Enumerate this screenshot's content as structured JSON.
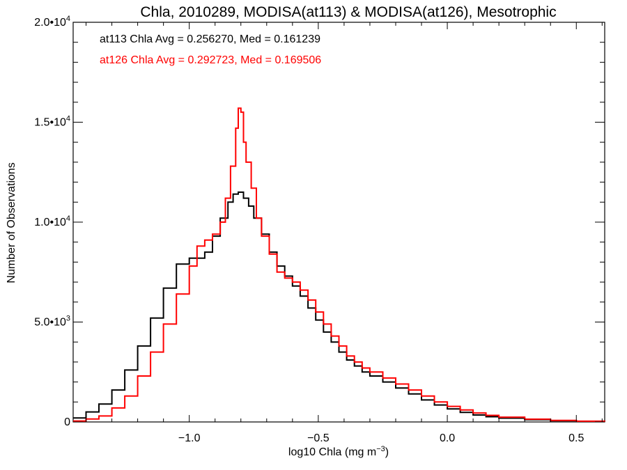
{
  "chart_data": {
    "type": "line",
    "step": true,
    "title": "Chla, 2010289, MODISA(at113) & MODISA(at126), Mesotrophic",
    "xlabel": "log10 Chla (mg m",
    "xlabel_exponent": "−3",
    "xlabel_suffix": ")",
    "ylabel": "Number of Observations",
    "xlim": [
      -1.45,
      0.61
    ],
    "ylim": [
      0,
      20000
    ],
    "grid": false,
    "x_ticks": [
      {
        "value": -1.0,
        "label": "−1.0"
      },
      {
        "value": -0.5,
        "label": "−0.5"
      },
      {
        "value": 0.0,
        "label": "0.0"
      },
      {
        "value": 0.5,
        "label": "0.5"
      }
    ],
    "y_ticks": [
      {
        "value": 0,
        "mantissa": "0",
        "exp": ""
      },
      {
        "value": 5000,
        "mantissa": "5.0•10",
        "exp": "3"
      },
      {
        "value": 10000,
        "mantissa": "1.0•10",
        "exp": "4"
      },
      {
        "value": 15000,
        "mantissa": "1.5•10",
        "exp": "4"
      },
      {
        "value": 20000,
        "mantissa": "2.0•10",
        "exp": "4"
      }
    ],
    "annotations": [
      {
        "text": "at113 Chla Avg = 0.256270, Med = 0.161239",
        "color": "#000000"
      },
      {
        "text": "at126 Chla Avg = 0.292723, Med = 0.169506",
        "color": "#ff0000"
      }
    ],
    "series": [
      {
        "color": "#000000",
        "x": [
          -1.45,
          -1.4,
          -1.35,
          -1.3,
          -1.25,
          -1.2,
          -1.15,
          -1.1,
          -1.05,
          -1.0,
          -0.97,
          -0.94,
          -0.91,
          -0.88,
          -0.85,
          -0.83,
          -0.81,
          -0.79,
          -0.77,
          -0.75,
          -0.72,
          -0.69,
          -0.66,
          -0.63,
          -0.6,
          -0.57,
          -0.54,
          -0.51,
          -0.48,
          -0.45,
          -0.42,
          -0.39,
          -0.36,
          -0.33,
          -0.3,
          -0.25,
          -0.2,
          -0.15,
          -0.1,
          -0.05,
          0.0,
          0.05,
          0.1,
          0.15,
          0.2,
          0.3,
          0.4,
          0.5,
          0.61
        ],
        "y": [
          200,
          500,
          900,
          1600,
          2600,
          3800,
          5200,
          6700,
          7900,
          8200,
          8200,
          8500,
          9300,
          10200,
          11000,
          11400,
          11500,
          11200,
          10800,
          10200,
          9400,
          8500,
          7800,
          7300,
          6800,
          6300,
          5700,
          5100,
          4500,
          4000,
          3500,
          3100,
          2800,
          2500,
          2300,
          2000,
          1700,
          1400,
          1100,
          850,
          650,
          480,
          350,
          260,
          190,
          110,
          60,
          30,
          10
        ]
      },
      {
        "color": "#ff0000",
        "x": [
          -1.45,
          -1.4,
          -1.35,
          -1.3,
          -1.25,
          -1.2,
          -1.15,
          -1.1,
          -1.05,
          -1.0,
          -0.97,
          -0.94,
          -0.91,
          -0.88,
          -0.86,
          -0.84,
          -0.82,
          -0.81,
          -0.8,
          -0.79,
          -0.78,
          -0.76,
          -0.74,
          -0.72,
          -0.69,
          -0.66,
          -0.63,
          -0.6,
          -0.57,
          -0.54,
          -0.51,
          -0.48,
          -0.45,
          -0.42,
          -0.39,
          -0.36,
          -0.33,
          -0.3,
          -0.25,
          -0.2,
          -0.15,
          -0.1,
          -0.05,
          0.0,
          0.05,
          0.1,
          0.15,
          0.2,
          0.3,
          0.4,
          0.5,
          0.61
        ],
        "y": [
          50,
          150,
          300,
          700,
          1300,
          2300,
          3500,
          4900,
          6400,
          7800,
          8800,
          9100,
          9400,
          10000,
          11200,
          12800,
          14700,
          15700,
          15500,
          14000,
          13000,
          11700,
          10200,
          9300,
          8400,
          7500,
          7200,
          7000,
          6600,
          6100,
          5500,
          4900,
          4300,
          3800,
          3300,
          3000,
          2700,
          2500,
          2200,
          1900,
          1600,
          1300,
          1000,
          780,
          600,
          450,
          330,
          240,
          140,
          80,
          40,
          15
        ]
      }
    ]
  }
}
